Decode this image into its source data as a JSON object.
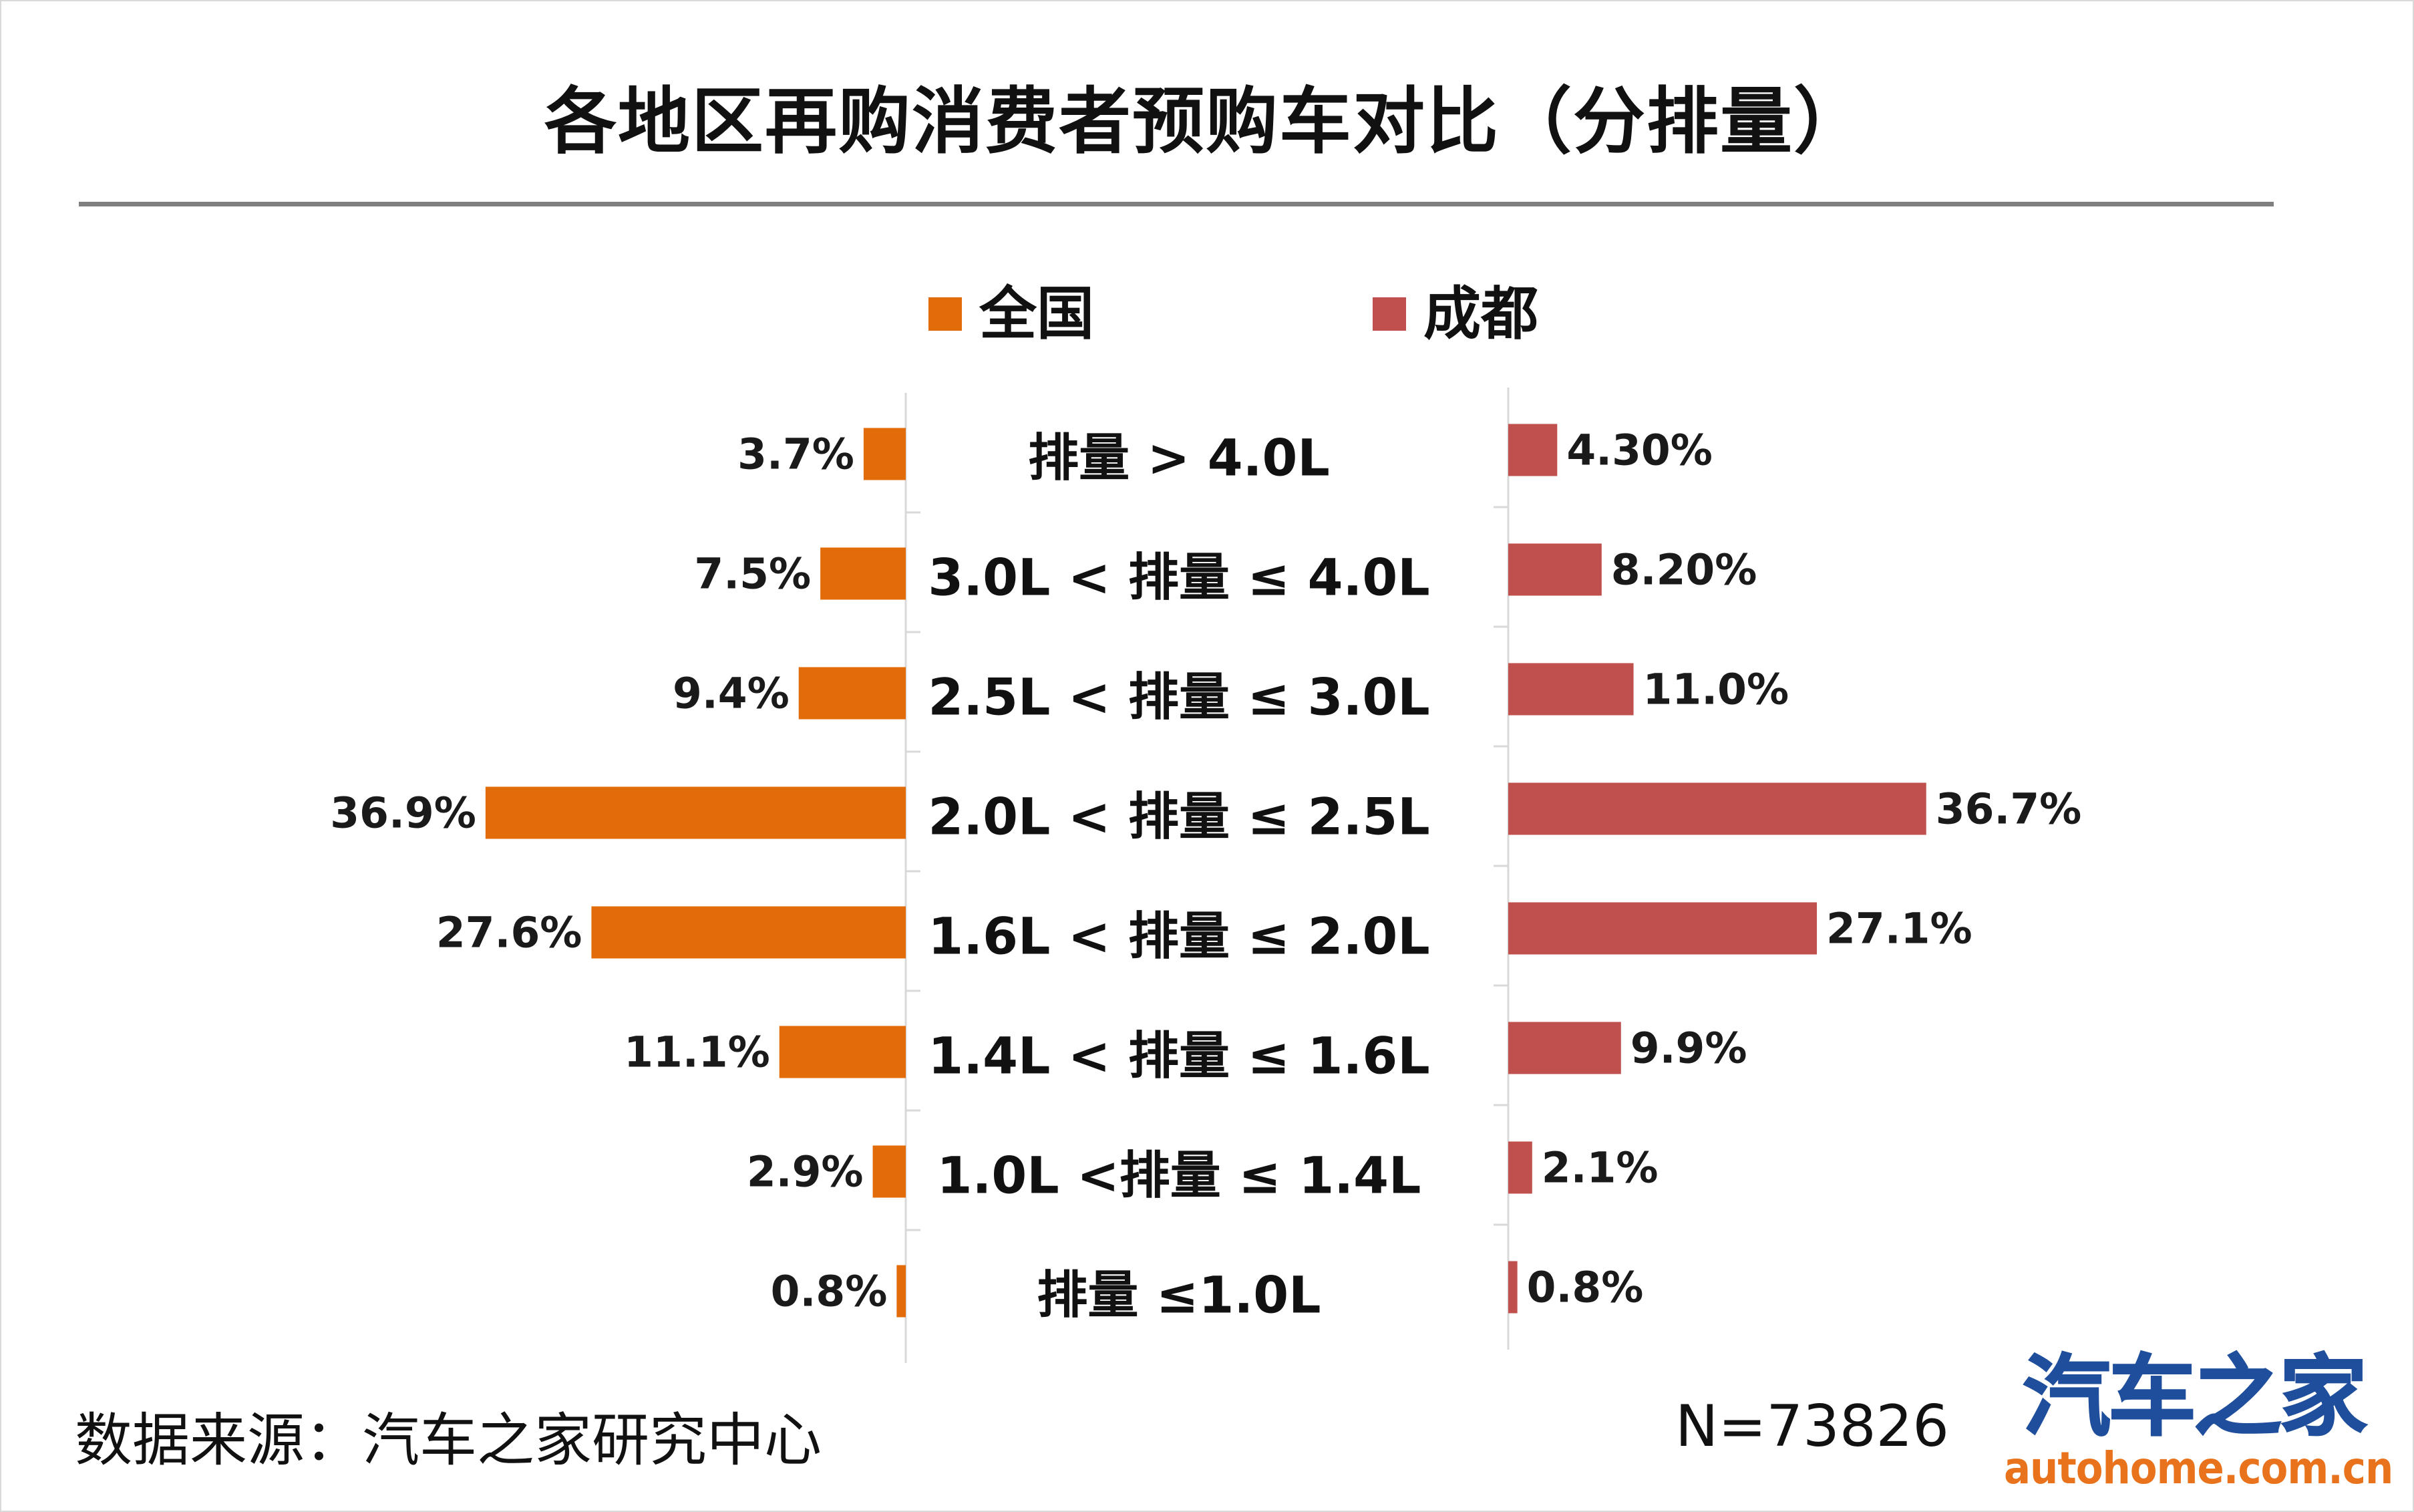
{
  "chart_data": {
    "type": "bar",
    "title": "各地区再购消费者预购车对比（分排量）",
    "categories": [
      "排量 > 4.0L",
      "3.0L < 排量 ≤ 4.0L",
      "2.5L < 排量 ≤ 3.0L",
      "2.0L < 排量 ≤ 2.5L",
      "1.6L < 排量 ≤ 2.0L",
      "1.4L < 排量 ≤ 1.6L",
      "1.0L <排量 ≤ 1.4L",
      "排量 ≤1.0L"
    ],
    "series": [
      {
        "name": "全国",
        "color": "#e36c0a",
        "values": [
          3.7,
          7.5,
          9.4,
          36.9,
          27.6,
          11.1,
          2.9,
          0.8
        ],
        "labels": [
          "3.7%",
          "7.5%",
          "9.4%",
          "36.9%",
          "27.6%",
          "11.1%",
          "2.9%",
          "0.8%"
        ]
      },
      {
        "name": "成都",
        "color": "#c0504d",
        "values": [
          4.3,
          8.2,
          11.0,
          36.7,
          27.1,
          9.9,
          2.1,
          0.8
        ],
        "labels": [
          "4.30%",
          "8.20%",
          "11.0%",
          "36.7%",
          "27.1%",
          "9.9%",
          "2.1%",
          "0.8%"
        ]
      }
    ],
    "legend_position": "top",
    "grid": false
  },
  "footer": {
    "source": "数据来源：汽车之家研究中心",
    "sample": "N=73826"
  },
  "logo": {
    "name": "汽车之家",
    "url": "autohome.com.cn"
  }
}
